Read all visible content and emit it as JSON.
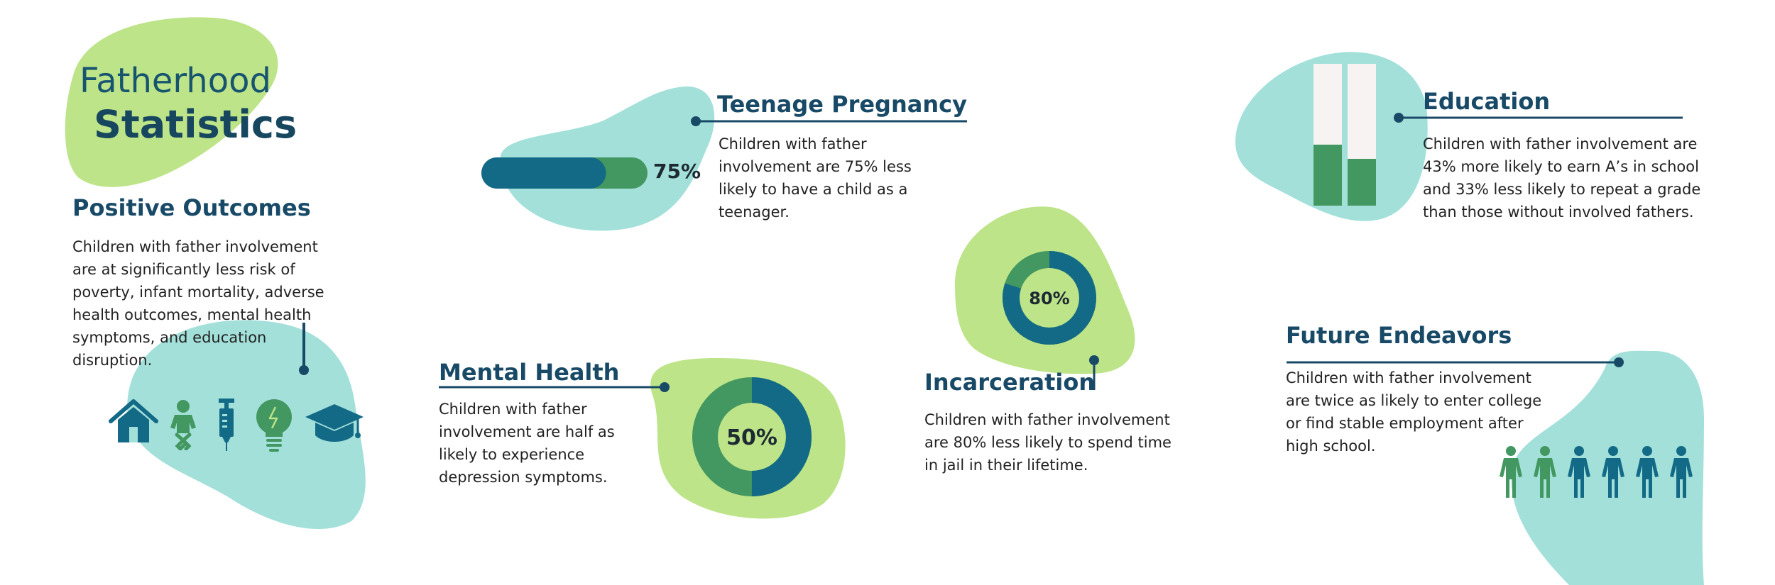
{
  "title": {
    "line1": "Fatherhood",
    "line2": "Statistics"
  },
  "colors": {
    "teal_blob": "#a3e0da",
    "green_blob": "#bde488",
    "dark_teal": "#136a86",
    "mid_green": "#439760",
    "navy_text": "#184a67",
    "bar_track": "#f8f3f3"
  },
  "sections": {
    "positive_outcomes": {
      "heading": "Positive Outcomes",
      "lines": [
        "Children with father involvement",
        "are at significantly less risk of",
        "poverty, infant mortality, adverse",
        "health outcomes, mental health",
        "symptoms, and education",
        "disruption."
      ],
      "icons": [
        "house-icon",
        "baby-icon",
        "syringe-icon",
        "lightbulb-icon",
        "graduation-cap-icon"
      ]
    },
    "teenage_pregnancy": {
      "heading": "Teenage Pregnancy",
      "value_label": "75%",
      "value": 0.75,
      "lines": [
        "Children with father",
        "involvement are 75% less",
        "likely to have a child as a",
        "teenager."
      ]
    },
    "mental_health": {
      "heading": "Mental Health",
      "value_label": "50%",
      "value": 0.5,
      "lines": [
        "Children with father",
        "involvement are half as",
        "likely to experience",
        "depression symptoms."
      ]
    },
    "incarceration": {
      "heading": "Incarceration",
      "value_label": "80%",
      "value": 0.8,
      "lines": [
        "Children with father involvement",
        "are 80% less likely to spend time",
        "in jail in their lifetime."
      ]
    },
    "education": {
      "heading": "Education",
      "bar_values": [
        0.43,
        0.33
      ],
      "lines": [
        "Children with father involvement are",
        "43% more likely to earn A’s in school",
        "and 33% less likely to repeat a grade",
        "than those without involved fathers."
      ]
    },
    "future_endeavors": {
      "heading": "Future Endeavors",
      "people_green": 2,
      "people_total": 6,
      "lines": [
        "Children with father involvement",
        "are twice as likely to enter college",
        "or find stable employment after",
        "high school."
      ]
    }
  }
}
